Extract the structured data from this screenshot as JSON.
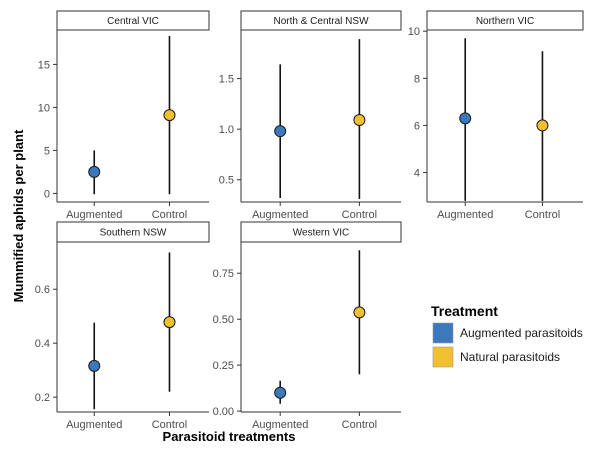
{
  "chart_data": {
    "type": "scatter",
    "xlabel": "Parasitoid treatments",
    "ylabel": "Mummified aphids per plant",
    "categories": [
      "Augmented",
      "Control"
    ],
    "legend": {
      "title": "Treatment",
      "placement": "right",
      "items": [
        {
          "label": "Augmented parasitoids",
          "color": "#3b78bc"
        },
        {
          "label": "Natural parasitoids",
          "color": "#efc030"
        }
      ]
    },
    "grid": false,
    "panels": [
      {
        "title": "Central VIC",
        "ylim": [
          -1,
          19
        ],
        "yticks": [
          0,
          5,
          10,
          15
        ],
        "ytick_labels": [
          "0",
          "5",
          "10",
          "15"
        ],
        "points": [
          {
            "x": "Augmented",
            "y": 2.5,
            "ymin": -0.1,
            "ymax": 5.0
          },
          {
            "x": "Control",
            "y": 9.1,
            "ymin": -0.1,
            "ymax": 18.3
          }
        ]
      },
      {
        "title": "North & Central NSW",
        "ylim": [
          0.28,
          1.98
        ],
        "yticks": [
          0.5,
          1.0,
          1.5
        ],
        "ytick_labels": [
          "0.5",
          "1.0",
          "1.5"
        ],
        "points": [
          {
            "x": "Augmented",
            "y": 0.98,
            "ymin": 0.32,
            "ymax": 1.64
          },
          {
            "x": "Control",
            "y": 1.09,
            "ymin": 0.31,
            "ymax": 1.89
          }
        ]
      },
      {
        "title": "Northern VIC",
        "ylim": [
          2.75,
          10.05
        ],
        "yticks": [
          4,
          6,
          8,
          10
        ],
        "ytick_labels": [
          "4",
          "6",
          "8",
          "10"
        ],
        "points": [
          {
            "x": "Augmented",
            "y": 6.3,
            "ymin": 2.8,
            "ymax": 9.7
          },
          {
            "x": "Control",
            "y": 6.0,
            "ymin": 2.8,
            "ymax": 9.15
          }
        ]
      },
      {
        "title": "Southern NSW",
        "ylim": [
          0.145,
          0.775
        ],
        "yticks": [
          0.2,
          0.4,
          0.6
        ],
        "ytick_labels": [
          "0.2",
          "0.4",
          "0.6"
        ],
        "points": [
          {
            "x": "Augmented",
            "y": 0.316,
            "ymin": 0.155,
            "ymax": 0.476
          },
          {
            "x": "Control",
            "y": 0.478,
            "ymin": 0.22,
            "ymax": 0.736
          }
        ]
      },
      {
        "title": "Western VIC",
        "ylim": [
          -0.005,
          0.92
        ],
        "yticks": [
          0.0,
          0.25,
          0.5,
          0.75
        ],
        "ytick_labels": [
          "0.00",
          "0.25",
          "0.50",
          "0.75"
        ],
        "points": [
          {
            "x": "Augmented",
            "y": 0.1,
            "ymin": 0.04,
            "ymax": 0.165
          },
          {
            "x": "Control",
            "y": 0.537,
            "ymin": 0.2,
            "ymax": 0.875
          }
        ]
      }
    ]
  }
}
